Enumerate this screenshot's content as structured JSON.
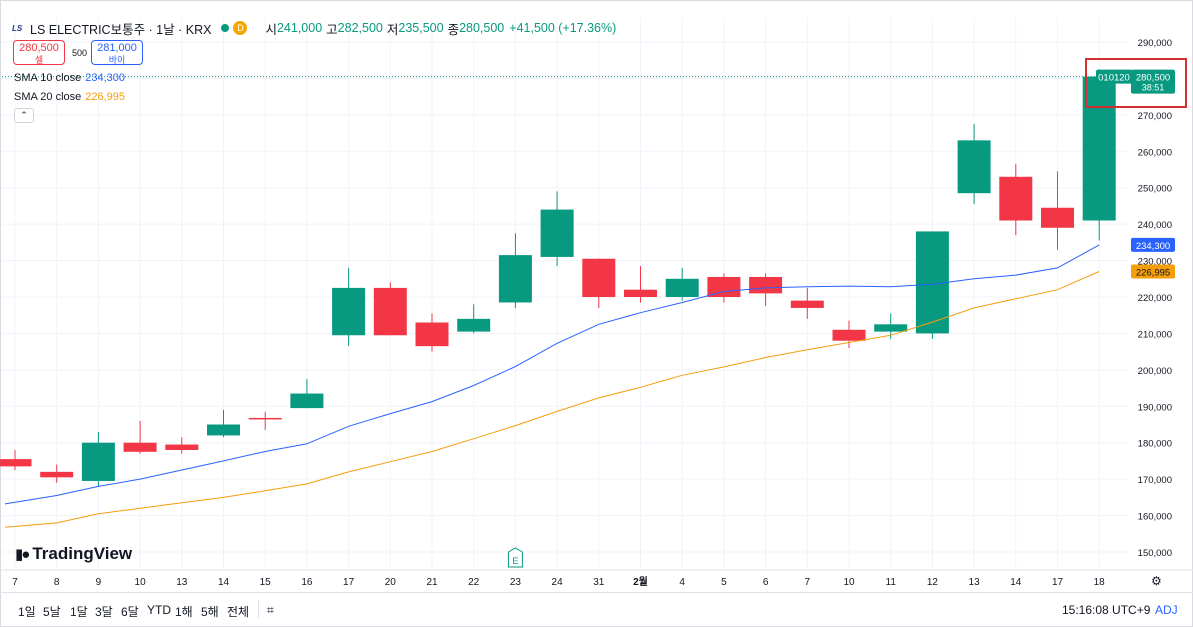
{
  "header": {
    "logo_text": "LS",
    "symbol": "LS ELECTRIC보통주 · 1날 · KRX",
    "d_badge": "D",
    "ohlc": [
      {
        "label": "시",
        "value": "241,000"
      },
      {
        "label": "고",
        "value": "282,500"
      },
      {
        "label": "저",
        "value": "235,500"
      },
      {
        "label": "종",
        "value": "280,500"
      }
    ],
    "change": "+41,500 (+17.36%)"
  },
  "trade": {
    "sell_price": "280,500",
    "sell_label": "셀",
    "quantity": "500",
    "buy_price": "281,000",
    "buy_label": "바이"
  },
  "indicators": {
    "sma10_label": "SMA 10 close",
    "sma10_value": "234,300",
    "sma20_label": "SMA 20 close",
    "sma20_value": "226,995",
    "collapse_icon": "chevron-up-icon"
  },
  "brand": {
    "name": "TradingView"
  },
  "bottom": {
    "ranges": [
      "1일",
      "5날",
      "1달",
      "3달",
      "6달",
      "YTD",
      "1해",
      "5해",
      "전체"
    ],
    "time": "15:16:08 UTC+9",
    "adj": "ADJ"
  },
  "colors": {
    "up": "#089981",
    "down": "#f23645",
    "sma10": "#2962ff",
    "sma20": "#f59e0b",
    "highlight": "#d32f2f"
  },
  "chart_data": {
    "type": "candlestick",
    "x": [
      "7",
      "8",
      "9",
      "10",
      "13",
      "14",
      "15",
      "16",
      "17",
      "20",
      "21",
      "22",
      "23",
      "24",
      "31",
      "2월",
      "4",
      "5",
      "6",
      "7",
      "10",
      "11",
      "12",
      "13",
      "14",
      "17",
      "18"
    ],
    "series": [
      {
        "values": {
          "open": [
            175500,
            172000,
            169500,
            180000,
            179500,
            182000,
            186800,
            189500,
            209500,
            222500,
            213000,
            210500,
            218500,
            231000,
            230500,
            222000,
            220000,
            225500,
            225500,
            219000,
            211000,
            210500,
            210000,
            248500,
            253000,
            244500,
            241000
          ],
          "high": [
            178000,
            174000,
            183000,
            186000,
            181500,
            189000,
            188500,
            197500,
            228000,
            224000,
            215500,
            218000,
            237500,
            249000,
            230500,
            228500,
            228000,
            226500,
            226500,
            222500,
            213500,
            215500,
            238000,
            267500,
            256500,
            254500,
            282500
          ],
          "low": [
            172500,
            169000,
            168000,
            177000,
            177000,
            181500,
            183500,
            189500,
            206500,
            209500,
            205000,
            210000,
            217000,
            228500,
            217000,
            218500,
            219000,
            218500,
            217500,
            214000,
            206000,
            208500,
            208500,
            245500,
            237000,
            233000,
            235500
          ],
          "close": [
            173500,
            170500,
            180000,
            177500,
            178000,
            185000,
            186500,
            193500,
            222500,
            209500,
            206500,
            214000,
            231500,
            244000,
            220000,
            220000,
            225000,
            220000,
            221000,
            217000,
            208000,
            212500,
            238000,
            263000,
            241000,
            239000,
            280500
          ]
        }
      },
      {
        "name": "SMA 10 close",
        "values": [
          163200,
          165500,
          168000,
          170000,
          172500,
          175000,
          177600,
          179700,
          184500,
          188000,
          191300,
          195700,
          200900,
          207300,
          212500,
          215700,
          218500,
          221500,
          222500,
          222800,
          223000,
          222800,
          223500,
          225000,
          226000,
          228000,
          234300
        ]
      },
      {
        "name": "SMA 20 close",
        "values": [
          156800,
          158000,
          160500,
          162000,
          163500,
          165000,
          166800,
          168700,
          172000,
          174800,
          177600,
          181100,
          184700,
          188600,
          192300,
          195200,
          198500,
          200800,
          203400,
          205500,
          207500,
          209500,
          213100,
          217000,
          219500,
          222000,
          226995
        ]
      }
    ],
    "ylim": [
      145000,
      290000
    ],
    "yticks": [
      150000,
      160000,
      170000,
      180000,
      190000,
      200000,
      210000,
      220000,
      230000,
      240000,
      250000,
      260000,
      270000,
      280000,
      290000
    ],
    "ytick_labels": [
      "150,000",
      "160,000",
      "170,000",
      "180,000",
      "190,000",
      "200,000",
      "210,000",
      "220,000",
      "230,000",
      "240,000",
      "250,000",
      "260,000",
      "270,000",
      "280,000",
      "290,000"
    ],
    "price_labels": {
      "last": "280,500",
      "countdown": "38:51",
      "code": "010120",
      "sma10": "234,300",
      "sma20": "226,995"
    },
    "event_marker": {
      "label": "E",
      "x": "23"
    },
    "grid": true
  }
}
